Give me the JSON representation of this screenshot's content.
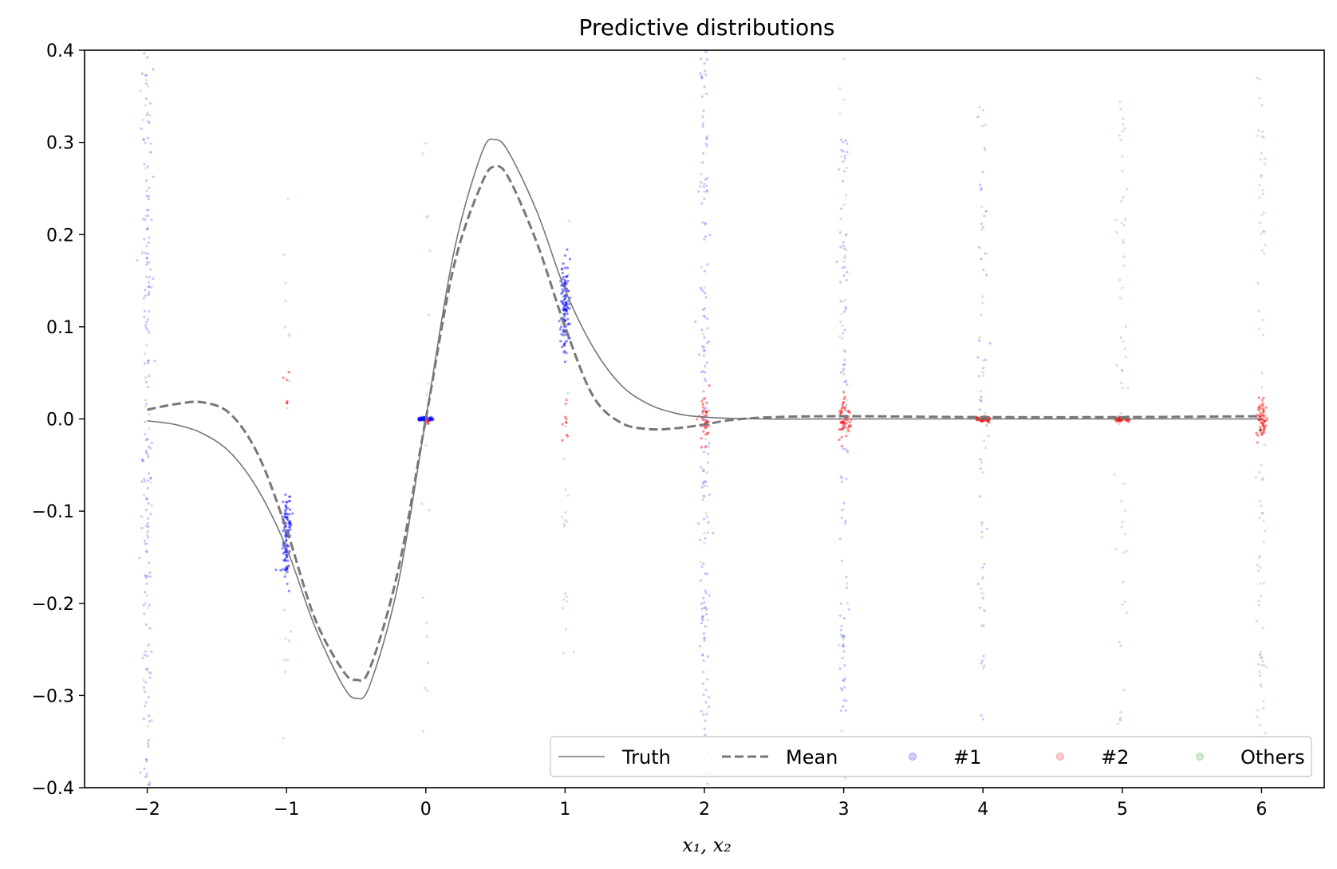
{
  "chart_data": {
    "type": "scatter",
    "title": "Predictive distributions",
    "xlabel": "x₁, x₂",
    "ylabel": "",
    "xlim": [
      -2.45,
      6.45
    ],
    "ylim": [
      -0.4,
      0.4
    ],
    "xticks": [
      -2,
      -1,
      0,
      1,
      2,
      3,
      4,
      5,
      6
    ],
    "xtick_labels": [
      "−2",
      "−1",
      "0",
      "1",
      "2",
      "3",
      "4",
      "5",
      "6"
    ],
    "yticks": [
      0.4,
      0.3,
      0.2,
      0.1,
      0.0,
      -0.1,
      -0.2,
      -0.3,
      -0.4
    ],
    "ytick_labels": [
      "0.4",
      "0.3",
      "0.2",
      "0.1",
      "0.0",
      "−0.1",
      "−0.2",
      "−0.3",
      "−0.4"
    ],
    "grid": false,
    "legend_position": "bottom-right",
    "series": [
      {
        "name": "Truth",
        "kind": "line",
        "color": "#777777",
        "dash": "solid",
        "x": [
          -2.0,
          -1.8,
          -1.6,
          -1.4,
          -1.2,
          -1.0,
          -0.8,
          -0.6,
          -0.5,
          -0.4,
          -0.2,
          0.0,
          0.2,
          0.4,
          0.5,
          0.6,
          0.8,
          1.0,
          1.2,
          1.4,
          1.6,
          1.8,
          2.0,
          2.4,
          3.0,
          4.0,
          5.0,
          6.0
        ],
        "y": [
          -0.002,
          -0.006,
          -0.016,
          -0.037,
          -0.078,
          -0.14,
          -0.224,
          -0.288,
          -0.303,
          -0.288,
          -0.18,
          0.0,
          0.18,
          0.288,
          0.303,
          0.288,
          0.224,
          0.14,
          0.078,
          0.037,
          0.016,
          0.006,
          0.002,
          0.0,
          0.0,
          0.0,
          0.0,
          0.0
        ]
      },
      {
        "name": "Mean",
        "kind": "line",
        "color": "#777777",
        "dash": "dashed",
        "x": [
          -2.0,
          -1.8,
          -1.6,
          -1.4,
          -1.2,
          -1.0,
          -0.8,
          -0.6,
          -0.5,
          -0.4,
          -0.2,
          0.0,
          0.2,
          0.4,
          0.5,
          0.6,
          0.8,
          1.0,
          1.2,
          1.4,
          1.6,
          1.8,
          2.0,
          2.2,
          2.5,
          3.0,
          4.0,
          5.0,
          6.0
        ],
        "y": [
          0.01,
          0.016,
          0.018,
          0.005,
          -0.04,
          -0.12,
          -0.215,
          -0.272,
          -0.283,
          -0.27,
          -0.165,
          0.0,
          0.165,
          0.255,
          0.274,
          0.26,
          0.19,
          0.1,
          0.025,
          -0.004,
          -0.011,
          -0.01,
          -0.006,
          -0.001,
          0.002,
          0.003,
          0.002,
          0.002,
          0.003
        ]
      },
      {
        "name": "#1",
        "kind": "scatter",
        "color": "#0000ff",
        "groups": [
          {
            "x": -2,
            "center": 0.0,
            "spread": 0.4,
            "count": 160
          },
          {
            "x": -1,
            "center": -0.125,
            "spread": 0.025,
            "count": 110
          },
          {
            "x": 0,
            "center": 0.0,
            "spread": 0.0006,
            "count": 40
          },
          {
            "x": 1,
            "center": 0.125,
            "spread": 0.025,
            "count": 110
          },
          {
            "x": 2,
            "center": 0.0,
            "spread": 0.4,
            "count": 160
          },
          {
            "x": 3,
            "center": 0.0,
            "spread": 0.34,
            "count": 90
          },
          {
            "x": 4,
            "center": 0.0,
            "spread": 0.33,
            "count": 45
          }
        ]
      },
      {
        "name": "#2",
        "kind": "scatter",
        "color": "#ff0000",
        "groups": [
          {
            "x": -1,
            "center": 0.02,
            "spread": 0.015,
            "count": 6
          },
          {
            "x": 0,
            "center": 0.0,
            "spread": 0.004,
            "count": 6
          },
          {
            "x": 1,
            "center": 0.0,
            "spread": 0.015,
            "count": 10
          },
          {
            "x": 2,
            "center": 0.0,
            "spread": 0.012,
            "count": 40
          },
          {
            "x": 3,
            "center": 0.0,
            "spread": 0.011,
            "count": 60
          },
          {
            "x": 4,
            "center": 0.0,
            "spread": 0.0012,
            "count": 30
          },
          {
            "x": 5,
            "center": 0.0,
            "spread": 0.0012,
            "count": 30
          },
          {
            "x": 6,
            "center": 0.0,
            "spread": 0.011,
            "count": 60
          }
        ]
      },
      {
        "name": "Others",
        "kind": "scatter",
        "color": "#2e8b2e",
        "groups": [
          {
            "x": -2,
            "center": 0.0,
            "spread": 0.4,
            "count": 40
          },
          {
            "x": -1,
            "center": 0.0,
            "spread": 0.35,
            "count": 20
          },
          {
            "x": 0,
            "center": 0.0,
            "spread": 0.35,
            "count": 20
          },
          {
            "x": 1,
            "center": 0.0,
            "spread": 0.28,
            "count": 25
          },
          {
            "x": 2,
            "center": 0.0,
            "spread": 0.33,
            "count": 20
          },
          {
            "x": 3,
            "center": 0.0,
            "spread": 0.4,
            "count": 35
          },
          {
            "x": 4,
            "center": 0.0,
            "spread": 0.35,
            "count": 30
          },
          {
            "x": 5,
            "center": 0.0,
            "spread": 0.35,
            "count": 60
          },
          {
            "x": 6,
            "center": 0.0,
            "spread": 0.37,
            "count": 90
          }
        ]
      }
    ]
  }
}
